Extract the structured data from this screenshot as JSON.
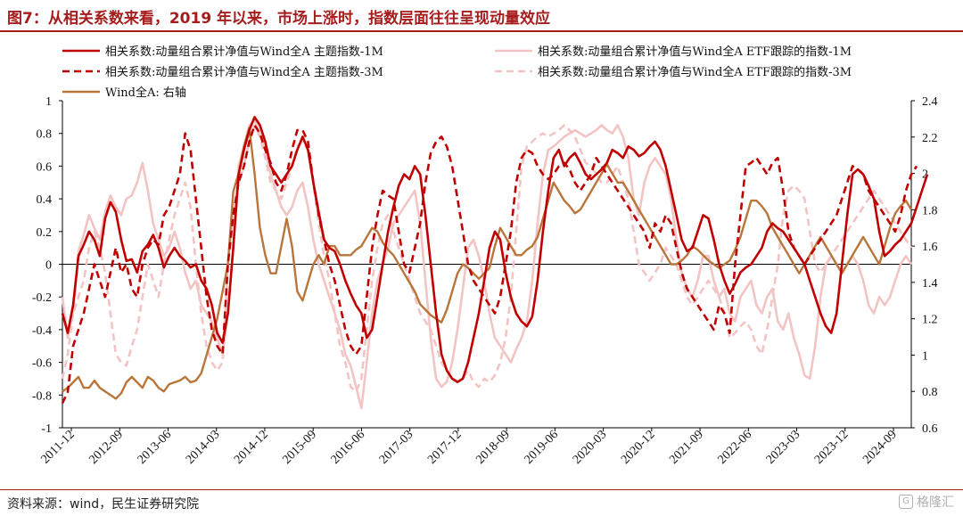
{
  "header": {
    "title": "图7：从相关系数来看，2019 年以来，市场上涨时，指数层面往往呈现动量效应"
  },
  "footer": {
    "source": "资料来源：wind，民生证券研究院",
    "brand": "格隆汇"
  },
  "chart_data": {
    "type": "line",
    "x_ticks": [
      "2011-12",
      "2012-09",
      "2013-06",
      "2014-03",
      "2014-12",
      "2015-09",
      "2016-06",
      "2017-03",
      "2017-12",
      "2018-09",
      "2019-06",
      "2020-03",
      "2020-12",
      "2021-09",
      "2022-06",
      "2023-03",
      "2023-12",
      "2024-09"
    ],
    "y_left": {
      "ticks": [
        "1",
        "0.8",
        "0.6",
        "0.4",
        "0.2",
        "0",
        "-0.2",
        "-0.4",
        "-0.6",
        "-0.8",
        "-1"
      ],
      "min": -1,
      "max": 1
    },
    "y_right": {
      "ticks": [
        "2.4",
        "2.2",
        "2",
        "1.8",
        "1.6",
        "1.4",
        "1.2",
        "1",
        "0.8",
        "0.6"
      ],
      "min": 0.6,
      "max": 2.4
    },
    "x_count": 160,
    "series": [
      {
        "name": "相关系数:动量组合累计净值与Wind全A 主题指数-1M",
        "color": "#c00000",
        "dash": "solid",
        "width": 2.6,
        "axis": "left",
        "values": [
          -0.3,
          -0.42,
          -0.25,
          0.05,
          0.12,
          0.2,
          0.15,
          0.05,
          0.28,
          0.38,
          0.32,
          0.15,
          0.02,
          0.03,
          -0.05,
          0.08,
          0.12,
          0.18,
          0.1,
          -0.02,
          0.05,
          0.1,
          0.05,
          0.02,
          -0.02,
          0.0,
          -0.1,
          -0.15,
          -0.25,
          -0.42,
          -0.48,
          -0.3,
          0.1,
          0.55,
          0.7,
          0.82,
          0.9,
          0.85,
          0.75,
          0.6,
          0.55,
          0.5,
          0.55,
          0.6,
          0.7,
          0.78,
          0.7,
          0.5,
          0.32,
          0.15,
          0.1,
          0.08,
          0.0,
          -0.1,
          -0.18,
          -0.25,
          -0.3,
          -0.45,
          -0.4,
          -0.2,
          0.0,
          0.2,
          0.35,
          0.48,
          0.55,
          0.52,
          0.6,
          0.55,
          0.3,
          0.0,
          -0.3,
          -0.55,
          -0.65,
          -0.7,
          -0.72,
          -0.7,
          -0.6,
          -0.45,
          -0.3,
          -0.1,
          0.1,
          0.2,
          0.15,
          -0.05,
          -0.2,
          -0.3,
          -0.35,
          -0.38,
          -0.32,
          -0.1,
          0.2,
          0.45,
          0.65,
          0.7,
          0.6,
          0.65,
          0.68,
          0.62,
          0.55,
          0.52,
          0.55,
          0.58,
          0.62,
          0.7,
          0.68,
          0.65,
          0.72,
          0.7,
          0.66,
          0.68,
          0.72,
          0.75,
          0.7,
          0.6,
          0.45,
          0.3,
          0.15,
          0.08,
          0.1,
          0.2,
          0.3,
          0.28,
          0.15,
          0.0,
          -0.1,
          -0.18,
          -0.12,
          -0.05,
          -0.02,
          0.0,
          0.05,
          0.1,
          0.2,
          0.25,
          0.22,
          0.2,
          0.15,
          0.1,
          0.05,
          0.0,
          -0.1,
          -0.2,
          -0.3,
          -0.38,
          -0.42,
          -0.3,
          0.0,
          0.3,
          0.55,
          0.58,
          0.55,
          0.48,
          0.4,
          0.2,
          0.05,
          0.08,
          0.12,
          0.15,
          0.2,
          0.25,
          0.35,
          0.45,
          0.55
        ]
      },
      {
        "name": "相关系数:动量组合累计净值与Wind全A ETF跟踪的指数-1M",
        "color": "#f2c4c4",
        "dash": "solid",
        "width": 2.6,
        "axis": "left",
        "values": [
          -0.2,
          -0.45,
          -0.3,
          0.08,
          0.18,
          0.3,
          0.22,
          0.15,
          0.32,
          0.42,
          0.35,
          0.3,
          0.4,
          0.42,
          0.5,
          0.62,
          0.45,
          0.25,
          0.15,
          0.05,
          0.1,
          0.2,
          0.1,
          -0.05,
          -0.15,
          -0.1,
          -0.25,
          -0.3,
          -0.35,
          -0.45,
          -0.55,
          -0.3,
          0.1,
          0.6,
          0.72,
          0.85,
          0.88,
          0.8,
          0.7,
          0.55,
          0.45,
          0.35,
          0.3,
          0.35,
          0.45,
          0.5,
          0.35,
          0.15,
          0.0,
          -0.1,
          -0.2,
          -0.3,
          -0.4,
          -0.55,
          -0.62,
          -0.75,
          -0.88,
          -0.6,
          -0.3,
          -0.1,
          0.0,
          0.1,
          0.25,
          0.3,
          0.35,
          0.4,
          0.45,
          0.25,
          -0.1,
          -0.45,
          -0.7,
          -0.75,
          -0.72,
          -0.6,
          -0.4,
          -0.15,
          0.1,
          0.15,
          0.05,
          -0.1,
          -0.3,
          -0.45,
          -0.5,
          -0.55,
          -0.6,
          -0.52,
          -0.45,
          -0.35,
          -0.1,
          0.25,
          0.55,
          0.7,
          0.72,
          0.75,
          0.78,
          0.8,
          0.82,
          0.8,
          0.78,
          0.8,
          0.82,
          0.85,
          0.82,
          0.8,
          0.85,
          0.78,
          0.65,
          0.4,
          0.3,
          0.5,
          0.6,
          0.65,
          0.6,
          0.55,
          0.4,
          0.15,
          -0.05,
          -0.15,
          -0.2,
          -0.1,
          0.05,
          0.05,
          -0.1,
          -0.2,
          -0.15,
          -0.3,
          -0.35,
          -0.2,
          -0.15,
          -0.1,
          -0.25,
          -0.3,
          -0.2,
          -0.15,
          -0.35,
          -0.4,
          -0.3,
          -0.45,
          -0.55,
          -0.68,
          -0.7,
          -0.5,
          -0.2,
          0.0,
          0.05,
          0.0,
          -0.05,
          0.0,
          0.05,
          0.0,
          -0.1,
          -0.25,
          -0.3,
          -0.2,
          -0.25,
          -0.2,
          -0.1,
          0.0,
          0.05,
          0.0
        ]
      },
      {
        "name": "相关系数:动量组合累计净值与Wind全A 主题指数-3M",
        "color": "#c00000",
        "dash": "8,5",
        "width": 2.6,
        "axis": "left",
        "values": [
          -0.85,
          -0.78,
          -0.5,
          -0.4,
          -0.3,
          -0.15,
          0.0,
          -0.1,
          -0.2,
          -0.05,
          0.1,
          -0.05,
          0.0,
          -0.15,
          -0.2,
          0.0,
          0.1,
          0.15,
          0.12,
          0.3,
          0.35,
          0.45,
          0.55,
          0.8,
          0.7,
          0.4,
          0.1,
          -0.2,
          -0.4,
          -0.5,
          -0.55,
          0.0,
          0.3,
          0.5,
          0.6,
          0.75,
          0.85,
          0.8,
          0.7,
          0.62,
          0.5,
          0.45,
          0.55,
          0.7,
          0.82,
          0.82,
          0.75,
          0.5,
          0.3,
          0.15,
          0.0,
          -0.1,
          -0.25,
          -0.4,
          -0.5,
          -0.55,
          -0.5,
          -0.2,
          0.1,
          0.3,
          0.45,
          0.42,
          0.4,
          0.2,
          0.0,
          -0.05,
          0.1,
          0.25,
          0.5,
          0.68,
          0.75,
          0.78,
          0.72,
          0.6,
          0.4,
          0.2,
          0.0,
          -0.1,
          -0.15,
          -0.2,
          -0.25,
          -0.3,
          -0.2,
          0.0,
          0.2,
          0.5,
          0.65,
          0.7,
          0.68,
          0.6,
          0.55,
          0.52,
          0.55,
          0.6,
          0.62,
          0.58,
          0.5,
          0.45,
          0.5,
          0.55,
          0.65,
          0.6,
          0.55,
          0.5,
          0.45,
          0.4,
          0.35,
          0.3,
          0.25,
          0.2,
          0.1,
          0.25,
          0.2,
          0.3,
          0.25,
          0.1,
          -0.05,
          -0.15,
          -0.2,
          -0.25,
          -0.3,
          -0.35,
          -0.4,
          -0.25,
          -0.3,
          -0.42,
          0.0,
          0.3,
          0.6,
          0.62,
          0.65,
          0.6,
          0.55,
          0.62,
          0.65,
          0.45,
          0.2,
          0.1,
          0.05,
          0.0,
          0.05,
          0.1,
          0.15,
          0.2,
          0.25,
          0.3,
          0.4,
          0.5,
          0.6,
          0.58,
          0.55,
          0.45,
          0.4,
          0.35,
          0.3,
          0.25,
          0.2,
          0.3,
          0.45,
          0.55,
          0.6
        ]
      },
      {
        "name": "相关系数:动量组合累计净值与Wind全A ETF跟踪的指数-3M",
        "color": "#f2c4c4",
        "dash": "8,5",
        "width": 2.6,
        "axis": "left",
        "values": [
          -0.7,
          -0.55,
          -0.3,
          -0.2,
          -0.1,
          0.1,
          0.2,
          0.1,
          -0.05,
          -0.3,
          -0.55,
          -0.6,
          -0.62,
          -0.5,
          -0.4,
          -0.2,
          0.0,
          -0.1,
          -0.2,
          0.0,
          0.15,
          0.3,
          0.4,
          0.5,
          0.35,
          0.0,
          -0.3,
          -0.5,
          -0.6,
          -0.65,
          -0.6,
          0.0,
          0.3,
          0.5,
          0.6,
          0.75,
          0.85,
          0.78,
          0.65,
          0.5,
          0.45,
          0.4,
          0.5,
          0.6,
          0.72,
          0.75,
          0.7,
          0.5,
          0.25,
          0.05,
          -0.1,
          -0.3,
          -0.5,
          -0.6,
          -0.75,
          -0.78,
          -0.7,
          -0.4,
          -0.1,
          0.1,
          0.25,
          0.3,
          0.2,
          0.1,
          0.0,
          -0.1,
          -0.2,
          -0.3,
          -0.35,
          -0.4,
          -0.5,
          -0.6,
          -0.65,
          -0.7,
          -0.72,
          -0.7,
          -0.65,
          -0.72,
          -0.75,
          -0.7,
          -0.72,
          -0.68,
          -0.6,
          -0.45,
          -0.2,
          0.2,
          0.6,
          0.72,
          0.75,
          0.78,
          0.8,
          0.78,
          0.8,
          0.82,
          0.85,
          0.82,
          0.78,
          0.7,
          0.62,
          0.6,
          0.55,
          0.5,
          0.5,
          0.55,
          0.6,
          0.5,
          0.4,
          0.2,
          0.0,
          -0.05,
          -0.1,
          -0.05,
          0.0,
          0.1,
          0.05,
          0.0,
          -0.1,
          -0.2,
          -0.25,
          -0.2,
          -0.15,
          -0.1,
          -0.15,
          -0.2,
          -0.3,
          -0.45,
          -0.42,
          -0.38,
          -0.35,
          -0.4,
          -0.5,
          -0.55,
          -0.4,
          -0.2,
          0.0,
          0.3,
          0.45,
          0.48,
          0.45,
          0.4,
          0.2,
          0.0,
          -0.05,
          0.0,
          0.05,
          0.1,
          0.15,
          0.2,
          0.25,
          0.3,
          0.35,
          0.4,
          0.45,
          0.4,
          0.35,
          0.3,
          0.25,
          0.2,
          0.15,
          0.1
        ]
      },
      {
        "name": "Wind全A: 右轴",
        "color": "#b9753a",
        "dash": "solid",
        "width": 2.4,
        "axis": "right",
        "values": [
          0.8,
          0.82,
          0.85,
          0.88,
          0.82,
          0.82,
          0.86,
          0.82,
          0.8,
          0.78,
          0.76,
          0.79,
          0.85,
          0.88,
          0.85,
          0.82,
          0.88,
          0.86,
          0.82,
          0.8,
          0.84,
          0.85,
          0.86,
          0.88,
          0.85,
          0.86,
          0.9,
          1.0,
          1.1,
          1.2,
          1.35,
          1.5,
          1.9,
          2.0,
          2.15,
          2.25,
          2.0,
          1.7,
          1.55,
          1.45,
          1.45,
          1.6,
          1.75,
          1.6,
          1.35,
          1.3,
          1.4,
          1.5,
          1.55,
          1.5,
          1.6,
          1.6,
          1.55,
          1.55,
          1.55,
          1.58,
          1.6,
          1.65,
          1.7,
          1.68,
          1.62,
          1.58,
          1.55,
          1.5,
          1.45,
          1.4,
          1.35,
          1.28,
          1.25,
          1.22,
          1.2,
          1.18,
          1.25,
          1.35,
          1.45,
          1.5,
          1.48,
          1.45,
          1.42,
          1.45,
          1.48,
          1.6,
          1.7,
          1.65,
          1.6,
          1.55,
          1.55,
          1.58,
          1.6,
          1.65,
          1.75,
          1.85,
          1.95,
          1.9,
          1.85,
          1.82,
          1.78,
          1.8,
          1.85,
          1.9,
          1.95,
          2.0,
          2.05,
          2.0,
          1.95,
          1.95,
          1.9,
          1.85,
          1.8,
          1.75,
          1.7,
          1.65,
          1.6,
          1.55,
          1.5,
          1.5,
          1.52,
          1.55,
          1.6,
          1.58,
          1.55,
          1.52,
          1.5,
          1.48,
          1.5,
          1.52,
          1.58,
          1.65,
          1.75,
          1.85,
          1.85,
          1.82,
          1.78,
          1.7,
          1.65,
          1.6,
          1.55,
          1.5,
          1.45,
          1.5,
          1.55,
          1.6,
          1.65,
          1.6,
          1.55,
          1.5,
          1.45,
          1.5,
          1.55,
          1.6,
          1.65,
          1.6,
          1.55,
          1.5,
          1.6,
          1.7,
          1.78,
          1.82,
          1.85,
          1.8
        ]
      }
    ]
  }
}
